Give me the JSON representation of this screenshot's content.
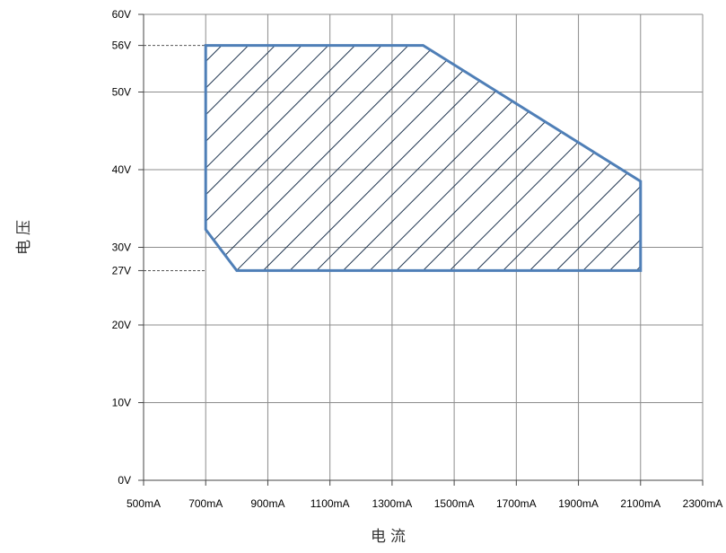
{
  "chart_data": {
    "type": "area",
    "title": "",
    "xlabel": "电流",
    "ylabel": "电压",
    "x_ticks": [
      {
        "value": 500,
        "label": "500mA"
      },
      {
        "value": 700,
        "label": "700mA"
      },
      {
        "value": 900,
        "label": "900mA"
      },
      {
        "value": 1100,
        "label": "1100mA"
      },
      {
        "value": 1300,
        "label": "1300mA"
      },
      {
        "value": 1500,
        "label": "1500mA"
      },
      {
        "value": 1700,
        "label": "1700mA"
      },
      {
        "value": 1900,
        "label": "1900mA"
      },
      {
        "value": 2100,
        "label": "2100mA"
      },
      {
        "value": 2300,
        "label": "2300mA"
      }
    ],
    "y_ticks": [
      {
        "value": 0,
        "label": "0V"
      },
      {
        "value": 10,
        "label": "10V"
      },
      {
        "value": 20,
        "label": "20V"
      },
      {
        "value": 27,
        "label": "27V"
      },
      {
        "value": 30,
        "label": "30V"
      },
      {
        "value": 40,
        "label": "40V"
      },
      {
        "value": 50,
        "label": "50V"
      },
      {
        "value": 56,
        "label": "56V"
      },
      {
        "value": 60,
        "label": "60V"
      }
    ],
    "xlim": [
      500,
      2300
    ],
    "ylim": [
      0,
      60
    ],
    "grid": true,
    "operating_region": [
      {
        "x": 700,
        "y": 56
      },
      {
        "x": 1400,
        "y": 56
      },
      {
        "x": 2100,
        "y": 38.5
      },
      {
        "x": 2100,
        "y": 27
      },
      {
        "x": 800,
        "y": 27
      },
      {
        "x": 700,
        "y": 32.3
      }
    ],
    "reference_lines_y": [
      56,
      27
    ],
    "colors": {
      "region_outline": "#4f7fb7",
      "hatch": "#1f3550",
      "grid": "#8c8c8c",
      "reference_line": "#555555"
    }
  }
}
